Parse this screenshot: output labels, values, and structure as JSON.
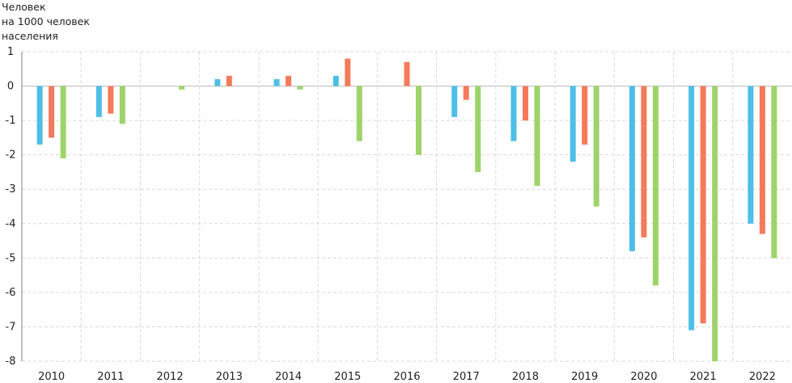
{
  "chart_data": {
    "type": "bar",
    "ylabel_lines": [
      "Человек",
      "на 1000 человек",
      "населения"
    ],
    "categories": [
      "2010",
      "2011",
      "2012",
      "2013",
      "2014",
      "2015",
      "2016",
      "2017",
      "2018",
      "2019",
      "2020",
      "2021",
      "2022"
    ],
    "series": [
      {
        "color": "#4DBFE6",
        "values": [
          -1.7,
          -0.9,
          0.0,
          0.2,
          0.2,
          0.3,
          0.0,
          -0.9,
          -1.6,
          -2.2,
          -4.8,
          -7.1,
          -4.0
        ]
      },
      {
        "color": "#F47A5B",
        "values": [
          -1.5,
          -0.8,
          0.0,
          0.3,
          0.3,
          0.8,
          0.7,
          -0.4,
          -1.0,
          -1.7,
          -4.4,
          -6.9,
          -4.3
        ]
      },
      {
        "color": "#9ED36A",
        "values": [
          -2.1,
          -1.1,
          -0.1,
          0.0,
          -0.1,
          -1.6,
          -2.0,
          -2.5,
          -2.9,
          -3.5,
          -5.8,
          -8.0,
          -5.0
        ]
      }
    ],
    "ylim": [
      -8,
      1
    ],
    "yticks": [
      "1",
      "0",
      "-1",
      "-2",
      "-3",
      "-4",
      "-5",
      "-6",
      "-7",
      "-8"
    ],
    "grid": true
  }
}
